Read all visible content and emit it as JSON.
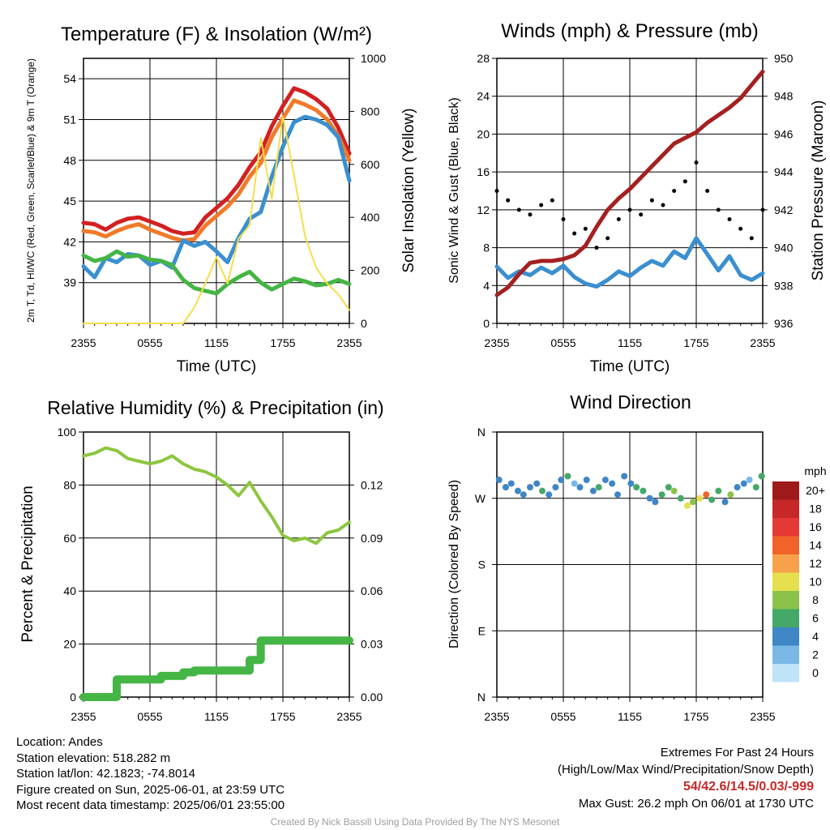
{
  "panels": {
    "temp": {
      "title": "Temperature (F) & Insolation (W/m²)",
      "left_ylabel": "2m T, Td, HI/WC (Red, Green, Scarlet/Blue) & 9m T (Orange)",
      "right_ylabel": "Solar Insolation (Yellow)",
      "xlabel": "Time (UTC)"
    },
    "wind": {
      "title": "Winds (mph) & Pressure (mb)",
      "left_ylabel": "Sonic Wind & Gust (Blue, Black)",
      "right_ylabel": "Station Pressure (Maroon)",
      "xlabel": "Time (UTC)"
    },
    "rh": {
      "title": "Relative Humidity (%) & Precipitation (in)",
      "left_ylabel": "Percent & Precipitation"
    },
    "dir": {
      "title": "Wind Direction",
      "left_ylabel": "Direction (Colored By Speed)",
      "colorbar_title": "mph",
      "colorbar_labels": [
        "20+",
        "18",
        "16",
        "14",
        "12",
        "10",
        "8",
        "6",
        "4",
        "2",
        "0"
      ],
      "colorbar_colors": [
        "#9e1a1a",
        "#c62828",
        "#e53935",
        "#f0642a",
        "#f7a24a",
        "#e6e04e",
        "#8bc34a",
        "#43a868",
        "#3f86c6",
        "#7ab8e6",
        "#bfe3f7"
      ]
    }
  },
  "chart_data": [
    {
      "type": "line",
      "panel": "temp",
      "x_ticks": [
        "2355",
        "0555",
        "1155",
        "1755",
        "2355"
      ],
      "y_ticks": [
        39,
        42,
        45,
        48,
        51,
        54
      ],
      "ylim": [
        36,
        55.5
      ],
      "y2_ticks": [
        0,
        200,
        400,
        600,
        800,
        1000
      ],
      "y2lim": [
        0,
        1000
      ],
      "xlim_hours": [
        0,
        24
      ],
      "series": [
        {
          "color": "#d32020",
          "x": [
            0,
            1,
            2,
            3,
            4,
            5,
            6,
            7,
            8,
            9,
            10,
            11,
            12,
            13,
            14,
            15,
            16,
            17,
            18,
            19,
            20,
            21,
            22,
            23,
            24
          ],
          "values": [
            43.4,
            43.3,
            42.9,
            43.4,
            43.7,
            43.8,
            43.5,
            43.2,
            42.8,
            42.6,
            42.7,
            43.8,
            44.5,
            45.2,
            46.2,
            47.5,
            48.6,
            50.5,
            52.0,
            53.3,
            53.0,
            52.5,
            51.8,
            50.4,
            48.5
          ]
        },
        {
          "color": "#f07a2a",
          "x": [
            0,
            1,
            2,
            3,
            4,
            5,
            6,
            7,
            8,
            9,
            10,
            11,
            12,
            13,
            14,
            15,
            16,
            17,
            18,
            19,
            20,
            21,
            22,
            23,
            24
          ],
          "values": [
            42.8,
            42.7,
            42.4,
            42.8,
            43.1,
            43.3,
            42.9,
            42.6,
            42.3,
            42.1,
            42.2,
            43.2,
            43.9,
            44.6,
            45.5,
            46.8,
            47.8,
            49.7,
            51.1,
            52.4,
            52.1,
            51.7,
            51.0,
            49.8,
            48.0
          ]
        },
        {
          "color": "#3a8fd0",
          "x": [
            0,
            1,
            2,
            3,
            4,
            5,
            6,
            7,
            8,
            9,
            10,
            11,
            12,
            13,
            14,
            15,
            16,
            17,
            18,
            19,
            20,
            21,
            22,
            23,
            24
          ],
          "values": [
            40.2,
            39.4,
            40.8,
            40.5,
            41.1,
            41.0,
            40.3,
            40.6,
            40.1,
            42.1,
            41.7,
            42.0,
            41.3,
            40.5,
            42.3,
            43.7,
            44.2,
            46.8,
            49.0,
            50.8,
            51.2,
            51.0,
            50.6,
            49.7,
            46.5
          ]
        },
        {
          "color": "#45b545",
          "x": [
            0,
            1,
            2,
            3,
            4,
            5,
            6,
            7,
            8,
            9,
            10,
            11,
            12,
            13,
            14,
            15,
            16,
            17,
            18,
            19,
            20,
            21,
            22,
            23,
            24
          ],
          "values": [
            41.0,
            40.6,
            40.8,
            41.3,
            40.9,
            41.0,
            40.7,
            40.6,
            40.3,
            39.2,
            38.6,
            38.4,
            38.2,
            38.9,
            39.4,
            39.8,
            39.0,
            38.5,
            38.9,
            39.3,
            39.1,
            38.8,
            38.9,
            39.2,
            38.9
          ]
        },
        {
          "color": "#f5de4a",
          "axis": "y2",
          "x": [
            0,
            1,
            2,
            3,
            4,
            5,
            6,
            7,
            8,
            9,
            10,
            11,
            12,
            13,
            14,
            15,
            16,
            17,
            18,
            19,
            20,
            21,
            22,
            23,
            24
          ],
          "values": [
            0,
            0,
            0,
            0,
            0,
            0,
            0,
            0,
            0,
            0,
            60,
            150,
            250,
            150,
            320,
            370,
            700,
            470,
            780,
            560,
            330,
            210,
            150,
            110,
            50
          ]
        }
      ]
    },
    {
      "type": "line",
      "panel": "wind",
      "x_ticks": [
        "2355",
        "0555",
        "1155",
        "1755",
        "2355"
      ],
      "y_ticks": [
        0,
        4,
        8,
        12,
        16,
        20,
        24,
        28
      ],
      "ylim": [
        0,
        28
      ],
      "y2_ticks": [
        936,
        938,
        940,
        942,
        944,
        946,
        948,
        950
      ],
      "y2lim": [
        936,
        950
      ],
      "xlim_hours": [
        0,
        24
      ],
      "series": [
        {
          "color": "#3a8fd0",
          "x": [
            0,
            1,
            2,
            3,
            4,
            5,
            6,
            7,
            8,
            9,
            10,
            11,
            12,
            13,
            14,
            15,
            16,
            17,
            18,
            19,
            20,
            21,
            22,
            23,
            24
          ],
          "values": [
            6,
            4.8,
            5.5,
            5.1,
            5.9,
            5.3,
            6.1,
            4.9,
            4.2,
            3.9,
            4.6,
            5.5,
            5.0,
            5.9,
            6.6,
            6.1,
            7.6,
            6.9,
            9.0,
            7.3,
            5.6,
            7.1,
            5.1,
            4.6,
            5.3
          ]
        },
        {
          "color": "#000000",
          "x": [
            0,
            1,
            2,
            3,
            4,
            5,
            6,
            7,
            8,
            9,
            10,
            11,
            12,
            13,
            14,
            15,
            16,
            17,
            18,
            19,
            20,
            21,
            22,
            23,
            24
          ],
          "values": [
            14,
            13,
            12,
            11.5,
            12.5,
            13,
            11,
            9.5,
            10,
            8,
            9,
            11,
            12,
            11.5,
            13,
            12.5,
            14,
            15,
            17,
            14,
            12,
            11,
            10,
            9,
            12
          ]
        },
        {
          "color": "#a52020",
          "axis": "y2",
          "x": [
            0,
            1,
            2,
            3,
            4,
            5,
            6,
            7,
            8,
            9,
            10,
            11,
            12,
            13,
            14,
            15,
            16,
            17,
            18,
            19,
            20,
            21,
            22,
            23,
            24
          ],
          "values": [
            937.5,
            937.9,
            938.6,
            939.2,
            939.3,
            939.3,
            939.4,
            939.6,
            940.1,
            941.1,
            942.0,
            942.6,
            943.1,
            943.7,
            944.3,
            944.9,
            945.5,
            945.8,
            946.1,
            946.6,
            947.0,
            947.4,
            947.9,
            948.6,
            949.3
          ]
        }
      ]
    },
    {
      "type": "line",
      "panel": "rh",
      "x_ticks": [
        "2355",
        "0555",
        "1155",
        "1755",
        "2355"
      ],
      "y_ticks": [
        0,
        20,
        40,
        60,
        80,
        100
      ],
      "ylim": [
        0,
        100
      ],
      "y2_ticks": [
        "0.00",
        "0.03",
        "0.06",
        "0.09",
        "0.12"
      ],
      "y2lim": [
        0,
        0.15
      ],
      "xlim_hours": [
        0,
        24
      ],
      "series": [
        {
          "color": "#8dc63f",
          "x": [
            0,
            1,
            2,
            3,
            4,
            5,
            6,
            7,
            8,
            9,
            10,
            11,
            12,
            13,
            14,
            15,
            16,
            17,
            18,
            19,
            20,
            21,
            22,
            23,
            24
          ],
          "values": [
            91,
            92,
            94,
            93,
            90,
            89,
            88,
            89,
            91,
            88,
            86,
            85,
            83,
            80,
            76,
            81,
            74,
            68,
            61,
            59,
            60,
            58,
            62,
            63,
            66
          ]
        },
        {
          "color": "#45b545",
          "axis": "y2",
          "x": [
            0,
            2,
            3,
            6,
            7,
            9,
            10,
            14,
            15,
            16,
            17,
            18,
            24
          ],
          "values": [
            0,
            0,
            0.01,
            0.01,
            0.012,
            0.014,
            0.015,
            0.015,
            0.021,
            0.032,
            0.032,
            0.032,
            0.032
          ]
        }
      ]
    },
    {
      "type": "scatter",
      "panel": "dir",
      "x_ticks": [
        "2355",
        "0555",
        "1155",
        "1755",
        "2355"
      ],
      "y_ticks": [
        "N",
        "W",
        "S",
        "E",
        "N"
      ],
      "ylim": [
        0,
        360
      ],
      "xlim_hours": [
        0,
        24
      ],
      "series": [
        {
          "name": "",
          "x": [
            0.2,
            0.8,
            1.3,
            1.9,
            2.4,
            3.0,
            3.6,
            4.1,
            4.7,
            5.3,
            5.8,
            6.4,
            7.0,
            7.5,
            8.1,
            8.7,
            9.2,
            9.8,
            10.4,
            10.9,
            11.5,
            12.1,
            12.6,
            13.2,
            13.8,
            14.3,
            14.9,
            15.5,
            16.0,
            16.6,
            17.2,
            17.7,
            18.3,
            18.9,
            19.4,
            20.0,
            20.6,
            21.1,
            21.7,
            22.3,
            22.8,
            23.4,
            23.9
          ],
          "values": [
            295,
            285,
            290,
            280,
            275,
            285,
            290,
            280,
            275,
            285,
            295,
            300,
            290,
            285,
            295,
            280,
            285,
            295,
            290,
            275,
            300,
            290,
            285,
            280,
            270,
            265,
            275,
            285,
            280,
            270,
            260,
            265,
            270,
            275,
            268,
            280,
            265,
            275,
            285,
            290,
            295,
            285,
            300
          ],
          "speeds": [
            4,
            4,
            4,
            4,
            4,
            4,
            4,
            6,
            4,
            4,
            4,
            6,
            2,
            4,
            4,
            4,
            6,
            4,
            4,
            4,
            4,
            4,
            6,
            6,
            4,
            4,
            6,
            6,
            8,
            6,
            10,
            8,
            10,
            14,
            6,
            6,
            4,
            8,
            4,
            4,
            2,
            6,
            6
          ]
        }
      ]
    }
  ],
  "footer": {
    "location": "Location: Andes",
    "elevation": "Station elevation: 518.282 m",
    "latlon": "Station lat/lon: 42.1823; -74.8014",
    "created": "Figure created on Sun, 2025-06-01, at 23:59 UTC",
    "recent": "Most recent data timestamp: 2025/06/01 23:55:00",
    "extremes_title": "Extremes For Past 24 Hours",
    "extremes_desc": "(High/Low/Max Wind/Precipitation/Snow Depth)",
    "extremes_values": "54/42.6/14.5/0.03/-999",
    "max_gust": "Max Gust: 26.2 mph On 06/01 at 1730 UTC",
    "credit": "Created By Nick Bassill Using Data Provided By The NYS Mesonet"
  }
}
